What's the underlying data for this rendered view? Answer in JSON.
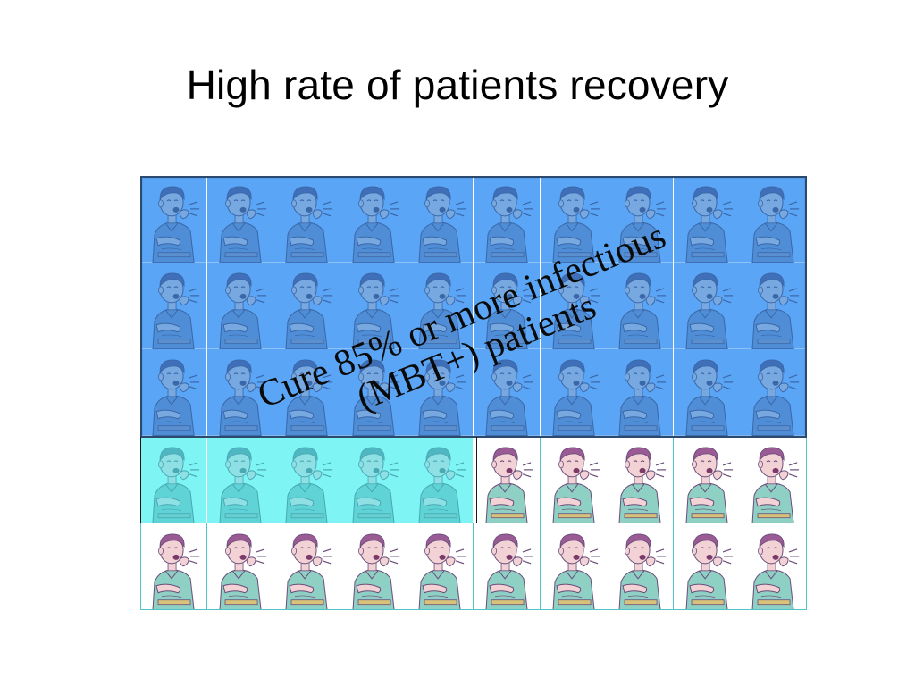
{
  "slide": {
    "title": "High rate of patients recovery",
    "caption_line1": "Cure 85% or more infectious",
    "caption_line2": "(MBT+) patients"
  },
  "grid": {
    "rows": 5,
    "cols": 10,
    "tinted_blue_rows": 3,
    "tinted_cyan_in_row4": 5,
    "cell_icon": "coughing-person-icon"
  },
  "colors": {
    "blue_tint": "#5aa5f5",
    "cyan_tint": "#7ef4f4",
    "plain_bg": "#ffffff",
    "figure_skin_tinted": "#6f9fd8",
    "figure_hair_plain": "#9a5a94",
    "figure_shirt_plain": "#8fd0c4"
  }
}
